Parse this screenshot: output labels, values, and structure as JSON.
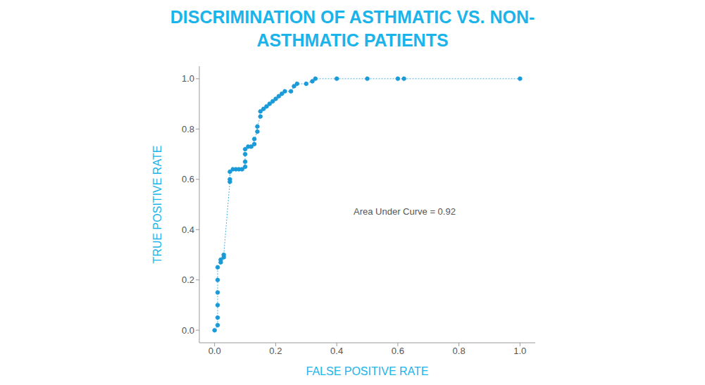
{
  "chart_data": {
    "type": "line",
    "title": "DISCRIMINATION OF ASTHMATIC VS. NON-ASTHMATIC PATIENTS",
    "x_label": "FALSE POSITIVE RATE",
    "y_label": "TRUE POSITIVE RATE",
    "annotations": [
      "Area Under Curve = 0.92"
    ],
    "color": "#1a9ad6",
    "marker": "circle",
    "line_style": "dotted",
    "xlim": [
      -0.05,
      1.05
    ],
    "ylim": [
      -0.05,
      1.05
    ],
    "xticks": [
      {
        "value": 0,
        "label": "0.0"
      },
      0.2,
      0.4,
      0.6,
      0.8,
      {
        "value": 1,
        "label": "1.0"
      }
    ],
    "yticks": [
      {
        "value": 0,
        "label": "0.0"
      },
      0.2,
      0.4,
      0.6,
      0.8,
      {
        "value": 1,
        "label": "1.0"
      }
    ],
    "x": [
      0.0,
      0.01,
      0.01,
      0.01,
      0.01,
      0.01,
      0.01,
      0.02,
      0.02,
      0.03,
      0.03,
      0.05,
      0.05,
      0.05,
      0.06,
      0.07,
      0.08,
      0.09,
      0.1,
      0.1,
      0.1,
      0.1,
      0.11,
      0.12,
      0.13,
      0.13,
      0.14,
      0.14,
      0.15,
      0.15,
      0.16,
      0.17,
      0.18,
      0.19,
      0.2,
      0.21,
      0.22,
      0.23,
      0.25,
      0.26,
      0.27,
      0.3,
      0.32,
      0.33,
      0.4,
      0.5,
      0.6,
      0.62,
      1.0
    ],
    "values": [
      0.0,
      0.02,
      0.05,
      0.1,
      0.15,
      0.2,
      0.25,
      0.27,
      0.28,
      0.29,
      0.3,
      0.59,
      0.6,
      0.63,
      0.64,
      0.64,
      0.64,
      0.64,
      0.65,
      0.67,
      0.7,
      0.72,
      0.73,
      0.73,
      0.74,
      0.76,
      0.79,
      0.81,
      0.85,
      0.87,
      0.88,
      0.89,
      0.9,
      0.91,
      0.92,
      0.93,
      0.94,
      0.95,
      0.95,
      0.97,
      0.98,
      0.98,
      0.99,
      1.0,
      1.0,
      1.0,
      1.0,
      1.0,
      1.0
    ]
  }
}
